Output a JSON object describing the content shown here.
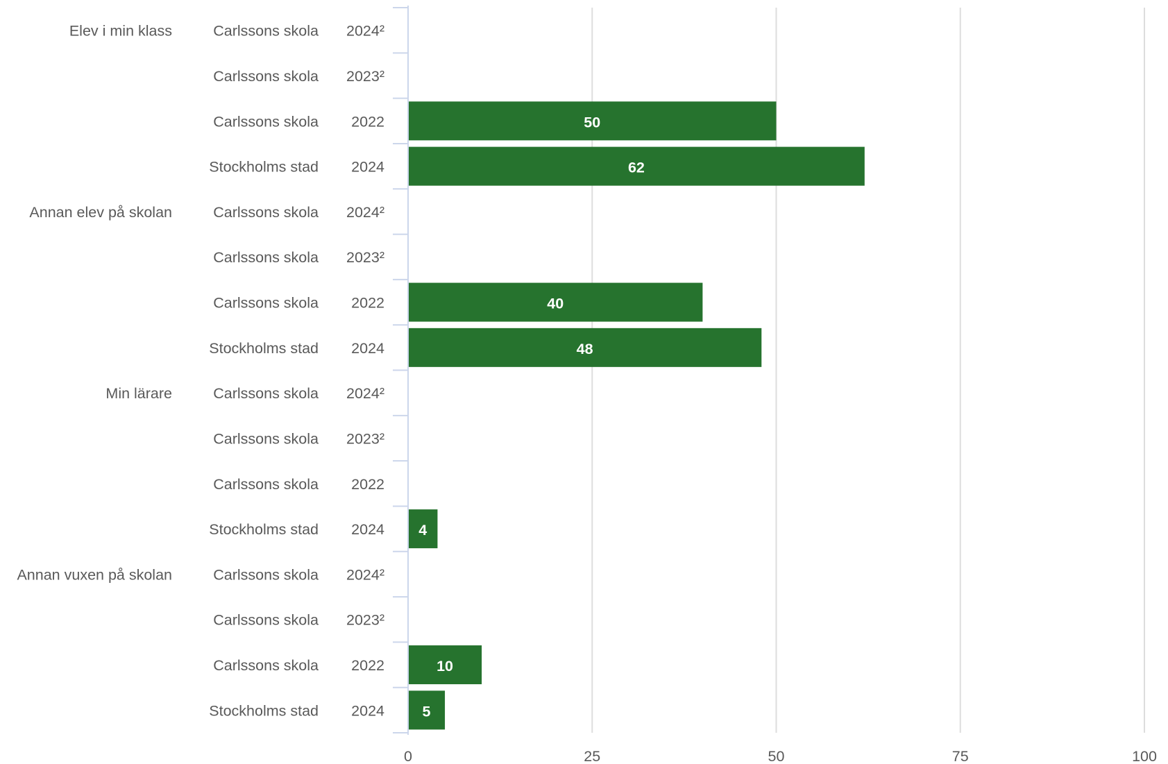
{
  "chart_data": {
    "type": "bar",
    "orientation": "horizontal",
    "bar_color": "#26732e",
    "gridline_color": "#dddddd",
    "axis_color": "#ccd6eb",
    "label_color": "#595959",
    "value_label_color": "#ffffff",
    "xlim": [
      0,
      100
    ],
    "x_ticks": [
      "0",
      "25",
      "50",
      "75",
      "100"
    ],
    "grid": true,
    "groups": [
      {
        "label": "Elev i min klass",
        "rows": [
          {
            "unit": "Carlssons skola",
            "year": "2024²",
            "value": null
          },
          {
            "unit": "Carlssons skola",
            "year": "2023²",
            "value": null
          },
          {
            "unit": "Carlssons skola",
            "year": "2022",
            "value": 50
          },
          {
            "unit": "Stockholms stad",
            "year": "2024",
            "value": 62
          }
        ]
      },
      {
        "label": "Annan elev på skolan",
        "rows": [
          {
            "unit": "Carlssons skola",
            "year": "2024²",
            "value": null
          },
          {
            "unit": "Carlssons skola",
            "year": "2023²",
            "value": null
          },
          {
            "unit": "Carlssons skola",
            "year": "2022",
            "value": 40
          },
          {
            "unit": "Stockholms stad",
            "year": "2024",
            "value": 48
          }
        ]
      },
      {
        "label": "Min lärare",
        "rows": [
          {
            "unit": "Carlssons skola",
            "year": "2024²",
            "value": null
          },
          {
            "unit": "Carlssons skola",
            "year": "2023²",
            "value": null
          },
          {
            "unit": "Carlssons skola",
            "year": "2022",
            "value": null
          },
          {
            "unit": "Stockholms stad",
            "year": "2024",
            "value": 4
          }
        ]
      },
      {
        "label": "Annan vuxen på skolan",
        "rows": [
          {
            "unit": "Carlssons skola",
            "year": "2024²",
            "value": null
          },
          {
            "unit": "Carlssons skola",
            "year": "2023²",
            "value": null
          },
          {
            "unit": "Carlssons skola",
            "year": "2022",
            "value": 10
          },
          {
            "unit": "Stockholms stad",
            "year": "2024",
            "value": 5
          }
        ]
      }
    ]
  }
}
